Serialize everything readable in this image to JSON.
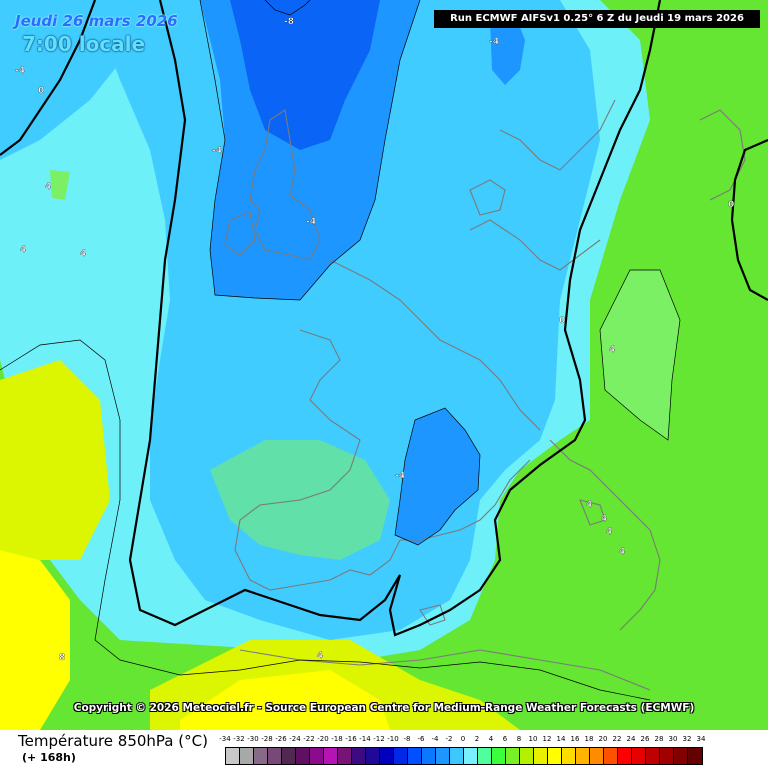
{
  "header": {
    "date": "Jeudi 26 mars 2026",
    "time": "7:00 locale",
    "run": "Run ECMWF AIFSv1 0.25° 6 Z du Jeudi 19 mars 2026"
  },
  "copyright": "Copyright © 2026 Meteociel.fr - Source European Centre for Medium-Range Weather Forecasts (ECMWF)",
  "footer": {
    "title": "Température 850hPa (°C)",
    "subtitle": "(+ 168h)"
  },
  "legend": {
    "labels": [
      "-34",
      "-32",
      "-30",
      "-28",
      "-26",
      "-24",
      "-22",
      "-20",
      "-18",
      "-16",
      "-14",
      "-12",
      "-10",
      "-8",
      "-6",
      "-4",
      "-2",
      "0",
      "2",
      "4",
      "6",
      "8",
      "10",
      "12",
      "14",
      "16",
      "18",
      "20",
      "22",
      "24",
      "26",
      "28",
      "30",
      "32",
      "34"
    ],
    "colors": [
      "#c8c8c8",
      "#a8a8a8",
      "#886a88",
      "#784878",
      "#502850",
      "#601060",
      "#8c0a8c",
      "#b414b4",
      "#781478",
      "#3c0a82",
      "#1e0a96",
      "#0000be",
      "#0028e6",
      "#0050ff",
      "#0a78ff",
      "#1e96ff",
      "#3cc8ff",
      "#78f0ff",
      "#50ff9c",
      "#3cff3c",
      "#78f028",
      "#b4f000",
      "#e6f000",
      "#ffff00",
      "#ffdc00",
      "#ffb400",
      "#ff8c00",
      "#ff5000",
      "#ff0000",
      "#e60000",
      "#be0000",
      "#a00000",
      "#820000",
      "#640000"
    ]
  },
  "map": {
    "colors": {
      "bg_green": "#64e632",
      "cold_bright": "#40ccff",
      "cyan": "#6ef0f8",
      "light_cyan": "#8ff8ff",
      "medium_blue": "#1e96ff",
      "deep_blue": "#0a64f5",
      "light_green": "#7cf064",
      "lime": "#b4f000",
      "yellow": "#ffff00",
      "yellow_green": "#dcf500",
      "coast": "#7a7a7a",
      "isotherm_zero": "#000000"
    },
    "contour_labels": [
      "-8",
      "-4",
      "-4",
      "0",
      "4",
      "4",
      "4",
      "-4",
      "-4",
      "0",
      "0",
      "4",
      "4",
      "4",
      "4",
      "-4",
      "4",
      "8",
      "4"
    ]
  }
}
